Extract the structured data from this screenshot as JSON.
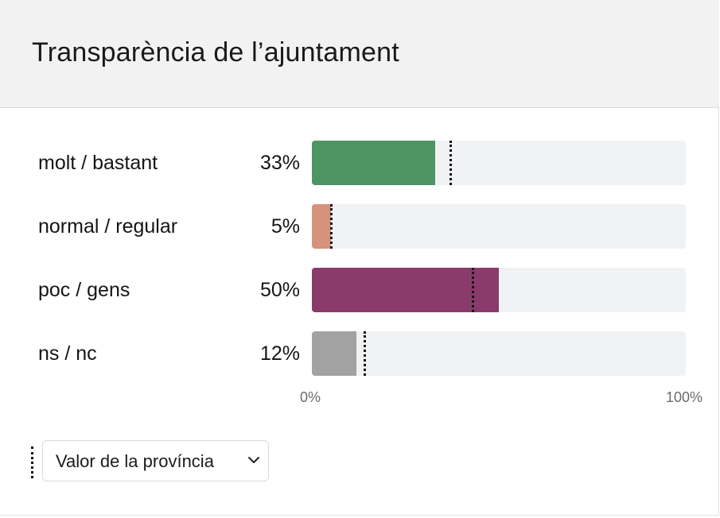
{
  "card": {
    "title": "Transparència de l’ajuntament"
  },
  "chart_data": {
    "type": "bar",
    "orientation": "horizontal",
    "title": "Transparència de l’ajuntament",
    "categories": [
      "molt / bastant",
      "normal / regular",
      "poc / gens",
      "ns / nc"
    ],
    "series": [
      {
        "values": [
          33,
          5,
          50,
          12
        ]
      }
    ],
    "value_labels": [
      "33%",
      "5%",
      "50%",
      "12%"
    ],
    "reference_values": [
      37,
      5,
      43,
      14
    ],
    "colors": [
      "#4f9463",
      "#d4937a",
      "#8b3b6b",
      "#a2a2a2"
    ],
    "track_color": "#f1f2f4",
    "xlim": [
      0,
      100
    ],
    "axis_ticks": [
      "0%",
      "100%"
    ],
    "grid": false
  },
  "legend": {
    "dropdown_label": "Valor de la província"
  }
}
